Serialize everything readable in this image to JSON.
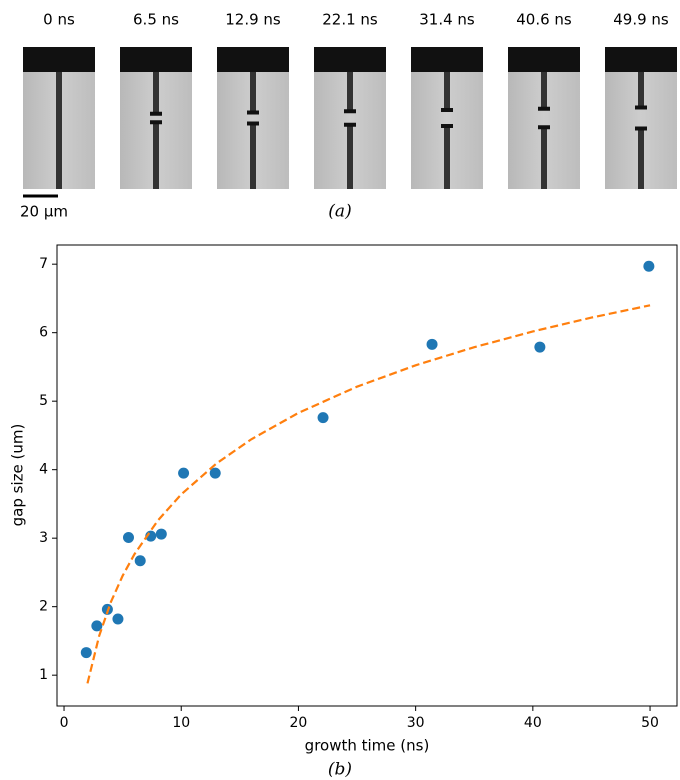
{
  "panels": {
    "labels": [
      "0 ns",
      "6.5 ns",
      "12.9 ns",
      "22.1 ns",
      "31.4 ns",
      "40.6 ns",
      "49.9 ns"
    ],
    "scale_bar": "20 µm",
    "caption": "(a)"
  },
  "chart_data": {
    "type": "scatter",
    "caption": "(b)",
    "x_label": "growth time (ns)",
    "y_label": "gap size (um)",
    "xlim": [
      -0.6,
      52.3
    ],
    "ylim": [
      0.55,
      7.28
    ],
    "xticks": [
      0,
      10,
      20,
      30,
      40,
      50
    ],
    "yticks": [
      1,
      2,
      3,
      4,
      5,
      6,
      7
    ],
    "series": [
      {
        "style": "markers",
        "color": "#1f77b4",
        "x": [
          1.9,
          2.8,
          3.7,
          4.6,
          5.5,
          6.5,
          7.4,
          8.3,
          10.2,
          12.9,
          22.1,
          31.4,
          40.6,
          49.9
        ],
        "values": [
          1.33,
          1.72,
          1.96,
          1.82,
          3.01,
          2.67,
          3.03,
          3.06,
          3.95,
          3.95,
          4.76,
          5.83,
          5.79,
          6.97
        ]
      },
      {
        "style": "dashed",
        "color": "#ff7f0e",
        "x": [
          2,
          3,
          4,
          5,
          6,
          8,
          10,
          13,
          16,
          20,
          25,
          30,
          35,
          40,
          45,
          50
        ],
        "values": [
          0.88,
          1.575,
          2.069,
          2.451,
          2.764,
          3.257,
          3.64,
          4.09,
          4.446,
          4.829,
          5.212,
          5.524,
          5.788,
          6.018,
          6.22,
          6.4
        ]
      }
    ]
  }
}
